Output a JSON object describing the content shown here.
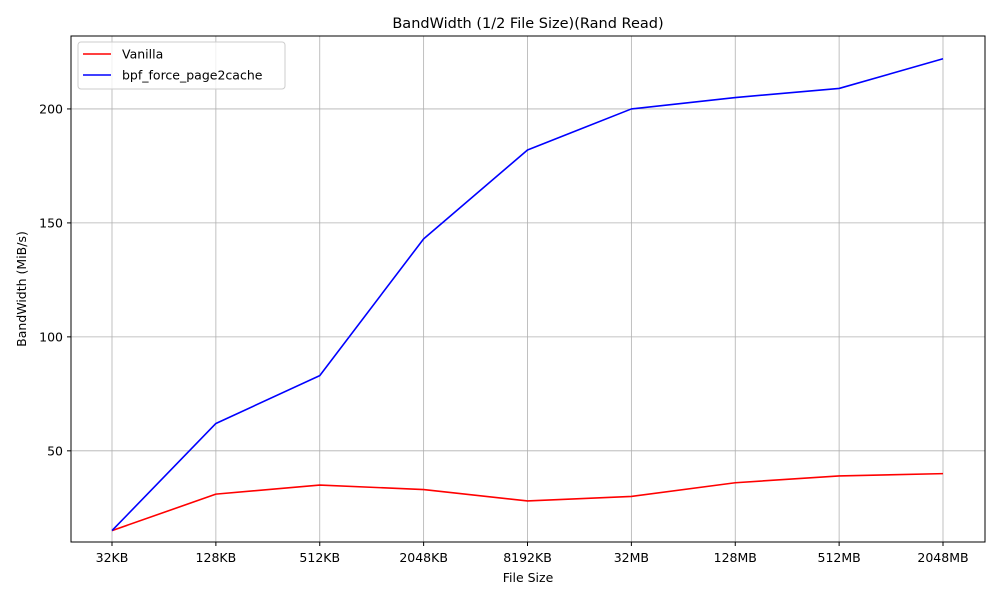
{
  "chart_data": {
    "type": "line",
    "title": "BandWidth (1/2 File Size)(Rand Read)",
    "xlabel": "File Size",
    "ylabel": "BandWidth (MiB/s)",
    "categories": [
      "32KB",
      "128KB",
      "512KB",
      "2048KB",
      "8192KB",
      "32MB",
      "128MB",
      "512MB",
      "2048MB"
    ],
    "yticks": [
      50,
      100,
      150,
      200
    ],
    "ylim": [
      10,
      232
    ],
    "grid": true,
    "legend_position": "top-left",
    "series": [
      {
        "name": "Vanilla",
        "color": "#ff0000",
        "values": [
          15,
          31,
          35,
          33,
          28,
          30,
          36,
          39,
          40
        ]
      },
      {
        "name": "bpf_force_page2cache",
        "color": "#0000ff",
        "values": [
          15,
          62,
          83,
          143,
          182,
          200,
          205,
          209,
          222
        ]
      }
    ]
  }
}
